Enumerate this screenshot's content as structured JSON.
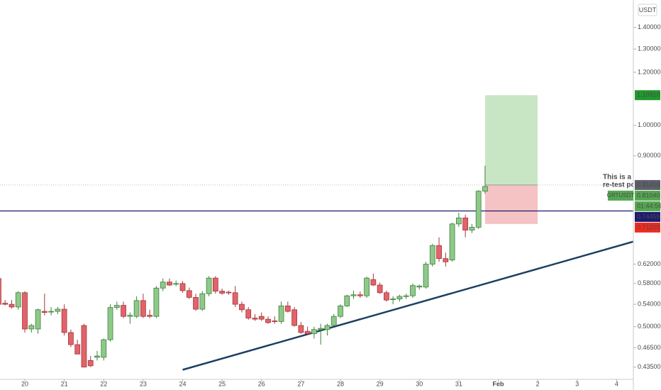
{
  "chart_data": {
    "type": "candlestick",
    "log_scale": true,
    "categories": [
      null,
      null,
      null,
      null,
      null,
      null,
      null,
      null,
      null,
      null,
      null,
      null,
      null,
      null,
      null,
      null,
      null,
      null,
      null,
      null,
      null,
      null,
      null,
      null,
      null,
      null,
      null,
      null,
      null,
      null,
      null,
      null,
      null,
      null,
      null,
      null,
      null,
      null,
      null,
      null,
      null,
      null,
      null,
      null,
      null,
      null,
      null,
      null,
      null,
      null,
      null,
      null,
      null,
      null,
      null,
      null,
      null,
      null,
      null,
      null,
      null,
      null,
      null,
      null,
      null,
      null,
      null,
      null,
      null,
      null,
      null,
      null,
      null,
      null,
      null
    ],
    "series": [
      {
        "name": "GRTUSDT",
        "up_color": "#8fc98a",
        "up_border": "#3f7f3c",
        "down_color": "#e0646a",
        "down_border": "#a8343a",
        "open": [
          0.59,
          0.542,
          0.54,
          0.535,
          0.562,
          0.496,
          0.496,
          0.527,
          0.526,
          0.527,
          0.531,
          0.49,
          0.47,
          0.502,
          0.445,
          0.45,
          0.45,
          0.478,
          0.534,
          0.538,
          0.518,
          0.518,
          0.547,
          0.52,
          0.518,
          0.571,
          0.583,
          0.58,
          0.58,
          0.566,
          0.553,
          0.531,
          0.56,
          0.591,
          0.565,
          0.563,
          0.562,
          0.54,
          0.53,
          0.515,
          0.518,
          0.513,
          0.51,
          0.509,
          0.537,
          0.53,
          0.502,
          0.492,
          0.488,
          0.495,
          0.495,
          0.502,
          0.518,
          0.537,
          0.556,
          0.558,
          0.556,
          0.588,
          0.577,
          0.562,
          0.549,
          0.55,
          0.555,
          0.556,
          0.573,
          0.573,
          0.62,
          0.661,
          0.632,
          0.629,
          0.712,
          0.727,
          0.697,
          0.704,
          0.797
        ],
        "high": [
          0.6,
          0.548,
          0.548,
          0.565,
          0.565,
          0.505,
          0.532,
          0.56,
          0.535,
          0.535,
          0.54,
          0.495,
          0.478,
          0.505,
          0.452,
          0.46,
          0.48,
          0.54,
          0.545,
          0.545,
          0.525,
          0.555,
          0.56,
          0.53,
          0.575,
          0.59,
          0.59,
          0.586,
          0.585,
          0.572,
          0.56,
          0.565,
          0.595,
          0.595,
          0.57,
          0.566,
          0.575,
          0.545,
          0.535,
          0.522,
          0.525,
          0.518,
          0.518,
          0.545,
          0.545,
          0.535,
          0.508,
          0.5,
          0.5,
          0.505,
          0.505,
          0.522,
          0.54,
          0.558,
          0.566,
          0.564,
          0.594,
          0.6,
          0.582,
          0.566,
          0.555,
          0.558,
          0.56,
          0.58,
          0.578,
          0.625,
          0.665,
          0.68,
          0.645,
          0.715,
          0.74,
          0.735,
          0.712,
          0.8,
          0.87
        ],
        "low": [
          0.535,
          0.538,
          0.532,
          0.53,
          0.49,
          0.49,
          0.488,
          0.52,
          0.52,
          0.522,
          0.485,
          0.466,
          0.455,
          0.435,
          0.435,
          0.445,
          0.445,
          0.475,
          0.53,
          0.515,
          0.505,
          0.515,
          0.515,
          0.515,
          0.515,
          0.565,
          0.575,
          0.575,
          0.562,
          0.55,
          0.528,
          0.528,
          0.555,
          0.56,
          0.558,
          0.558,
          0.535,
          0.525,
          0.512,
          0.51,
          0.51,
          0.505,
          0.505,
          0.505,
          0.525,
          0.5,
          0.488,
          0.486,
          0.48,
          0.47,
          0.485,
          0.5,
          0.515,
          0.535,
          0.55,
          0.552,
          0.552,
          0.575,
          0.56,
          0.545,
          0.54,
          0.545,
          0.55,
          0.552,
          0.568,
          0.57,
          0.615,
          0.625,
          0.615,
          0.625,
          0.705,
          0.68,
          0.69,
          0.7,
          0.79
        ],
        "close": [
          0.54,
          0.54,
          0.535,
          0.562,
          0.496,
          0.502,
          0.53,
          0.525,
          0.527,
          0.531,
          0.49,
          0.47,
          0.455,
          0.435,
          0.437,
          0.452,
          0.478,
          0.534,
          0.538,
          0.518,
          0.52,
          0.547,
          0.518,
          0.518,
          0.571,
          0.583,
          0.577,
          0.58,
          0.566,
          0.553,
          0.531,
          0.56,
          0.591,
          0.565,
          0.561,
          0.562,
          0.54,
          0.53,
          0.515,
          0.513,
          0.513,
          0.507,
          0.509,
          0.537,
          0.527,
          0.502,
          0.49,
          0.488,
          0.495,
          0.497,
          0.502,
          0.518,
          0.537,
          0.556,
          0.558,
          0.556,
          0.591,
          0.577,
          0.562,
          0.548,
          0.55,
          0.555,
          0.556,
          0.576,
          0.575,
          0.62,
          0.661,
          0.632,
          0.625,
          0.712,
          0.727,
          0.697,
          0.704,
          0.797,
          0.81
        ]
      }
    ],
    "xlim": [
      0.224,
      96.55
    ],
    "xticks": [
      {
        "value": 4,
        "label": "20"
      },
      {
        "value": 10,
        "label": "21"
      },
      {
        "value": 16,
        "label": "22"
      },
      {
        "value": 22,
        "label": "23"
      },
      {
        "value": 28,
        "label": "24"
      },
      {
        "value": 34,
        "label": "25"
      },
      {
        "value": 40,
        "label": "26"
      },
      {
        "value": 46,
        "label": "27"
      },
      {
        "value": 52,
        "label": "28"
      },
      {
        "value": 58,
        "label": "29"
      },
      {
        "value": 64,
        "label": "30"
      },
      {
        "value": 70,
        "label": "31"
      },
      {
        "value": 76,
        "label": "Feb"
      },
      {
        "value": 82,
        "label": "2"
      },
      {
        "value": 88,
        "label": "3"
      },
      {
        "value": 94,
        "label": "4"
      }
    ],
    "ylim": [
      0.414,
      1.539
    ],
    "yticks": [
      {
        "value": 1.4,
        "label": "1.40000"
      },
      {
        "value": 1.3,
        "label": "1.30000"
      },
      {
        "value": 1.2,
        "label": "1.20000"
      },
      {
        "value": 1.0,
        "label": "1.00000"
      },
      {
        "value": 0.9,
        "label": "0.90000"
      },
      {
        "value": 0.62,
        "label": "0.62000"
      },
      {
        "value": 0.58,
        "label": "0.58000"
      },
      {
        "value": 0.54,
        "label": "0.54000"
      },
      {
        "value": 0.5,
        "label": "0.50000"
      },
      {
        "value": 0.465,
        "label": "0.46500"
      },
      {
        "value": 0.435,
        "label": "0.43500"
      }
    ],
    "currency": "USDT",
    "target": {
      "value": 1.1091,
      "label": "1.10910",
      "color": "#1f9a2c"
    },
    "entry": {
      "value": 0.81416,
      "label": "0.81416",
      "color": "#5d606b"
    },
    "last_price": {
      "value": 0.8104,
      "label": "0.81040",
      "countdown": "01:44:56",
      "color": "#55a752"
    },
    "horizontal_line": {
      "value": 0.74459,
      "label": "0.74459",
      "color": "#1e1a6e"
    },
    "stop": {
      "value": 0.71205,
      "label": "0.71205",
      "color": "#ef2b22"
    },
    "position": {
      "x": [
        74,
        82
      ],
      "profit_color": "#c9e6c4",
      "loss_color": "#f5c3c4"
    },
    "trendline": {
      "x": [
        28,
        96.55
      ],
      "values": [
        0.431,
        0.67
      ],
      "color": "#1b3f63"
    },
    "annotation": {
      "lines": [
        "This is a pote",
        "re-test point."
      ],
      "color": "#5aa64d"
    }
  }
}
